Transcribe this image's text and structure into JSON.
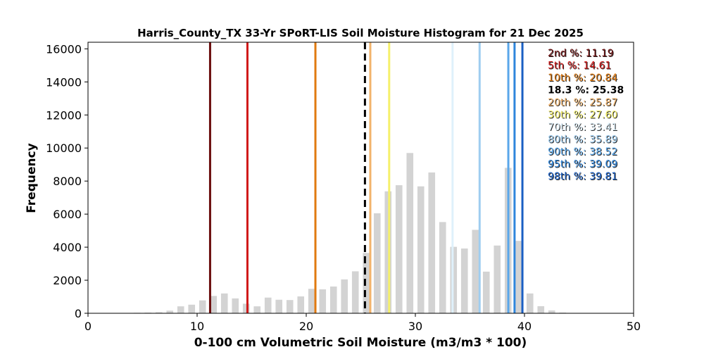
{
  "chart_data": {
    "type": "bar",
    "title": "Harris_County_TX 33-Yr SPoRT-LIS Soil Moisture Histogram for 21 Dec 2025",
    "xlabel": "0-100 cm Volumetric Soil Moisture (m3/m3 * 100)",
    "ylabel": "Frequency",
    "xlim": [
      0,
      50
    ],
    "ylim": [
      0,
      16400
    ],
    "xticks": [
      0,
      10,
      20,
      30,
      40,
      50
    ],
    "yticks": [
      0,
      2000,
      4000,
      6000,
      8000,
      10000,
      12000,
      14000,
      16000
    ],
    "bar_color": "#d3d3d3",
    "bars": [
      {
        "x": 3.5,
        "value": 20
      },
      {
        "x": 4.5,
        "value": 30
      },
      {
        "x": 5.5,
        "value": 40
      },
      {
        "x": 6.5,
        "value": 60
      },
      {
        "x": 7.5,
        "value": 160
      },
      {
        "x": 8.5,
        "value": 420
      },
      {
        "x": 9.5,
        "value": 520
      },
      {
        "x": 10.5,
        "value": 780
      },
      {
        "x": 11.5,
        "value": 1050
      },
      {
        "x": 12.5,
        "value": 1200
      },
      {
        "x": 13.5,
        "value": 900
      },
      {
        "x": 14.5,
        "value": 580
      },
      {
        "x": 15.5,
        "value": 420
      },
      {
        "x": 16.5,
        "value": 950
      },
      {
        "x": 17.5,
        "value": 820
      },
      {
        "x": 18.5,
        "value": 800
      },
      {
        "x": 19.5,
        "value": 1020
      },
      {
        "x": 20.5,
        "value": 1480
      },
      {
        "x": 21.5,
        "value": 1450
      },
      {
        "x": 22.5,
        "value": 1620
      },
      {
        "x": 23.5,
        "value": 2050
      },
      {
        "x": 24.5,
        "value": 2540
      },
      {
        "x": 25.5,
        "value": 3650
      },
      {
        "x": 26.5,
        "value": 6050
      },
      {
        "x": 27.5,
        "value": 7380
      },
      {
        "x": 28.5,
        "value": 7750
      },
      {
        "x": 29.5,
        "value": 9700
      },
      {
        "x": 30.5,
        "value": 7680
      },
      {
        "x": 31.5,
        "value": 8520
      },
      {
        "x": 32.5,
        "value": 5520
      },
      {
        "x": 33.5,
        "value": 4020
      },
      {
        "x": 34.5,
        "value": 3920
      },
      {
        "x": 35.5,
        "value": 5050
      },
      {
        "x": 36.5,
        "value": 2520
      },
      {
        "x": 37.5,
        "value": 4100
      },
      {
        "x": 38.5,
        "value": 8800
      },
      {
        "x": 39.5,
        "value": 4380
      },
      {
        "x": 40.5,
        "value": 1200
      },
      {
        "x": 41.5,
        "value": 430
      },
      {
        "x": 42.5,
        "value": 170
      },
      {
        "x": 43.5,
        "value": 40
      }
    ],
    "percentiles": [
      {
        "label": "2nd %: 11.19",
        "value": 11.19,
        "color": "#6b0d0d",
        "dashed": false
      },
      {
        "label": "5th %: 14.61",
        "value": 14.61,
        "color": "#d01818",
        "dashed": false
      },
      {
        "label": "10th %: 20.84",
        "value": 20.84,
        "color": "#e07a10",
        "dashed": false
      },
      {
        "label": "18.3 %: 25.38",
        "value": 25.38,
        "color": "#000000",
        "dashed": true
      },
      {
        "label": "20th %: 25.87",
        "value": 25.87,
        "color": "#f2b36a",
        "dashed": false
      },
      {
        "label": "30th %: 27.60",
        "value": 27.6,
        "color": "#f5f06a",
        "dashed": false
      },
      {
        "label": "70th %: 33.41",
        "value": 33.41,
        "color": "#dff1fb",
        "dashed": false
      },
      {
        "label": "80th %: 35.89",
        "value": 35.89,
        "color": "#9fcdf0",
        "dashed": false
      },
      {
        "label": "90th %: 38.52",
        "value": 38.52,
        "color": "#5aa7ea",
        "dashed": false
      },
      {
        "label": "95th %: 39.09",
        "value": 39.09,
        "color": "#2f86dc",
        "dashed": false
      },
      {
        "label": "98th %: 39.81",
        "value": 39.81,
        "color": "#1a5fc4",
        "dashed": false
      }
    ]
  }
}
